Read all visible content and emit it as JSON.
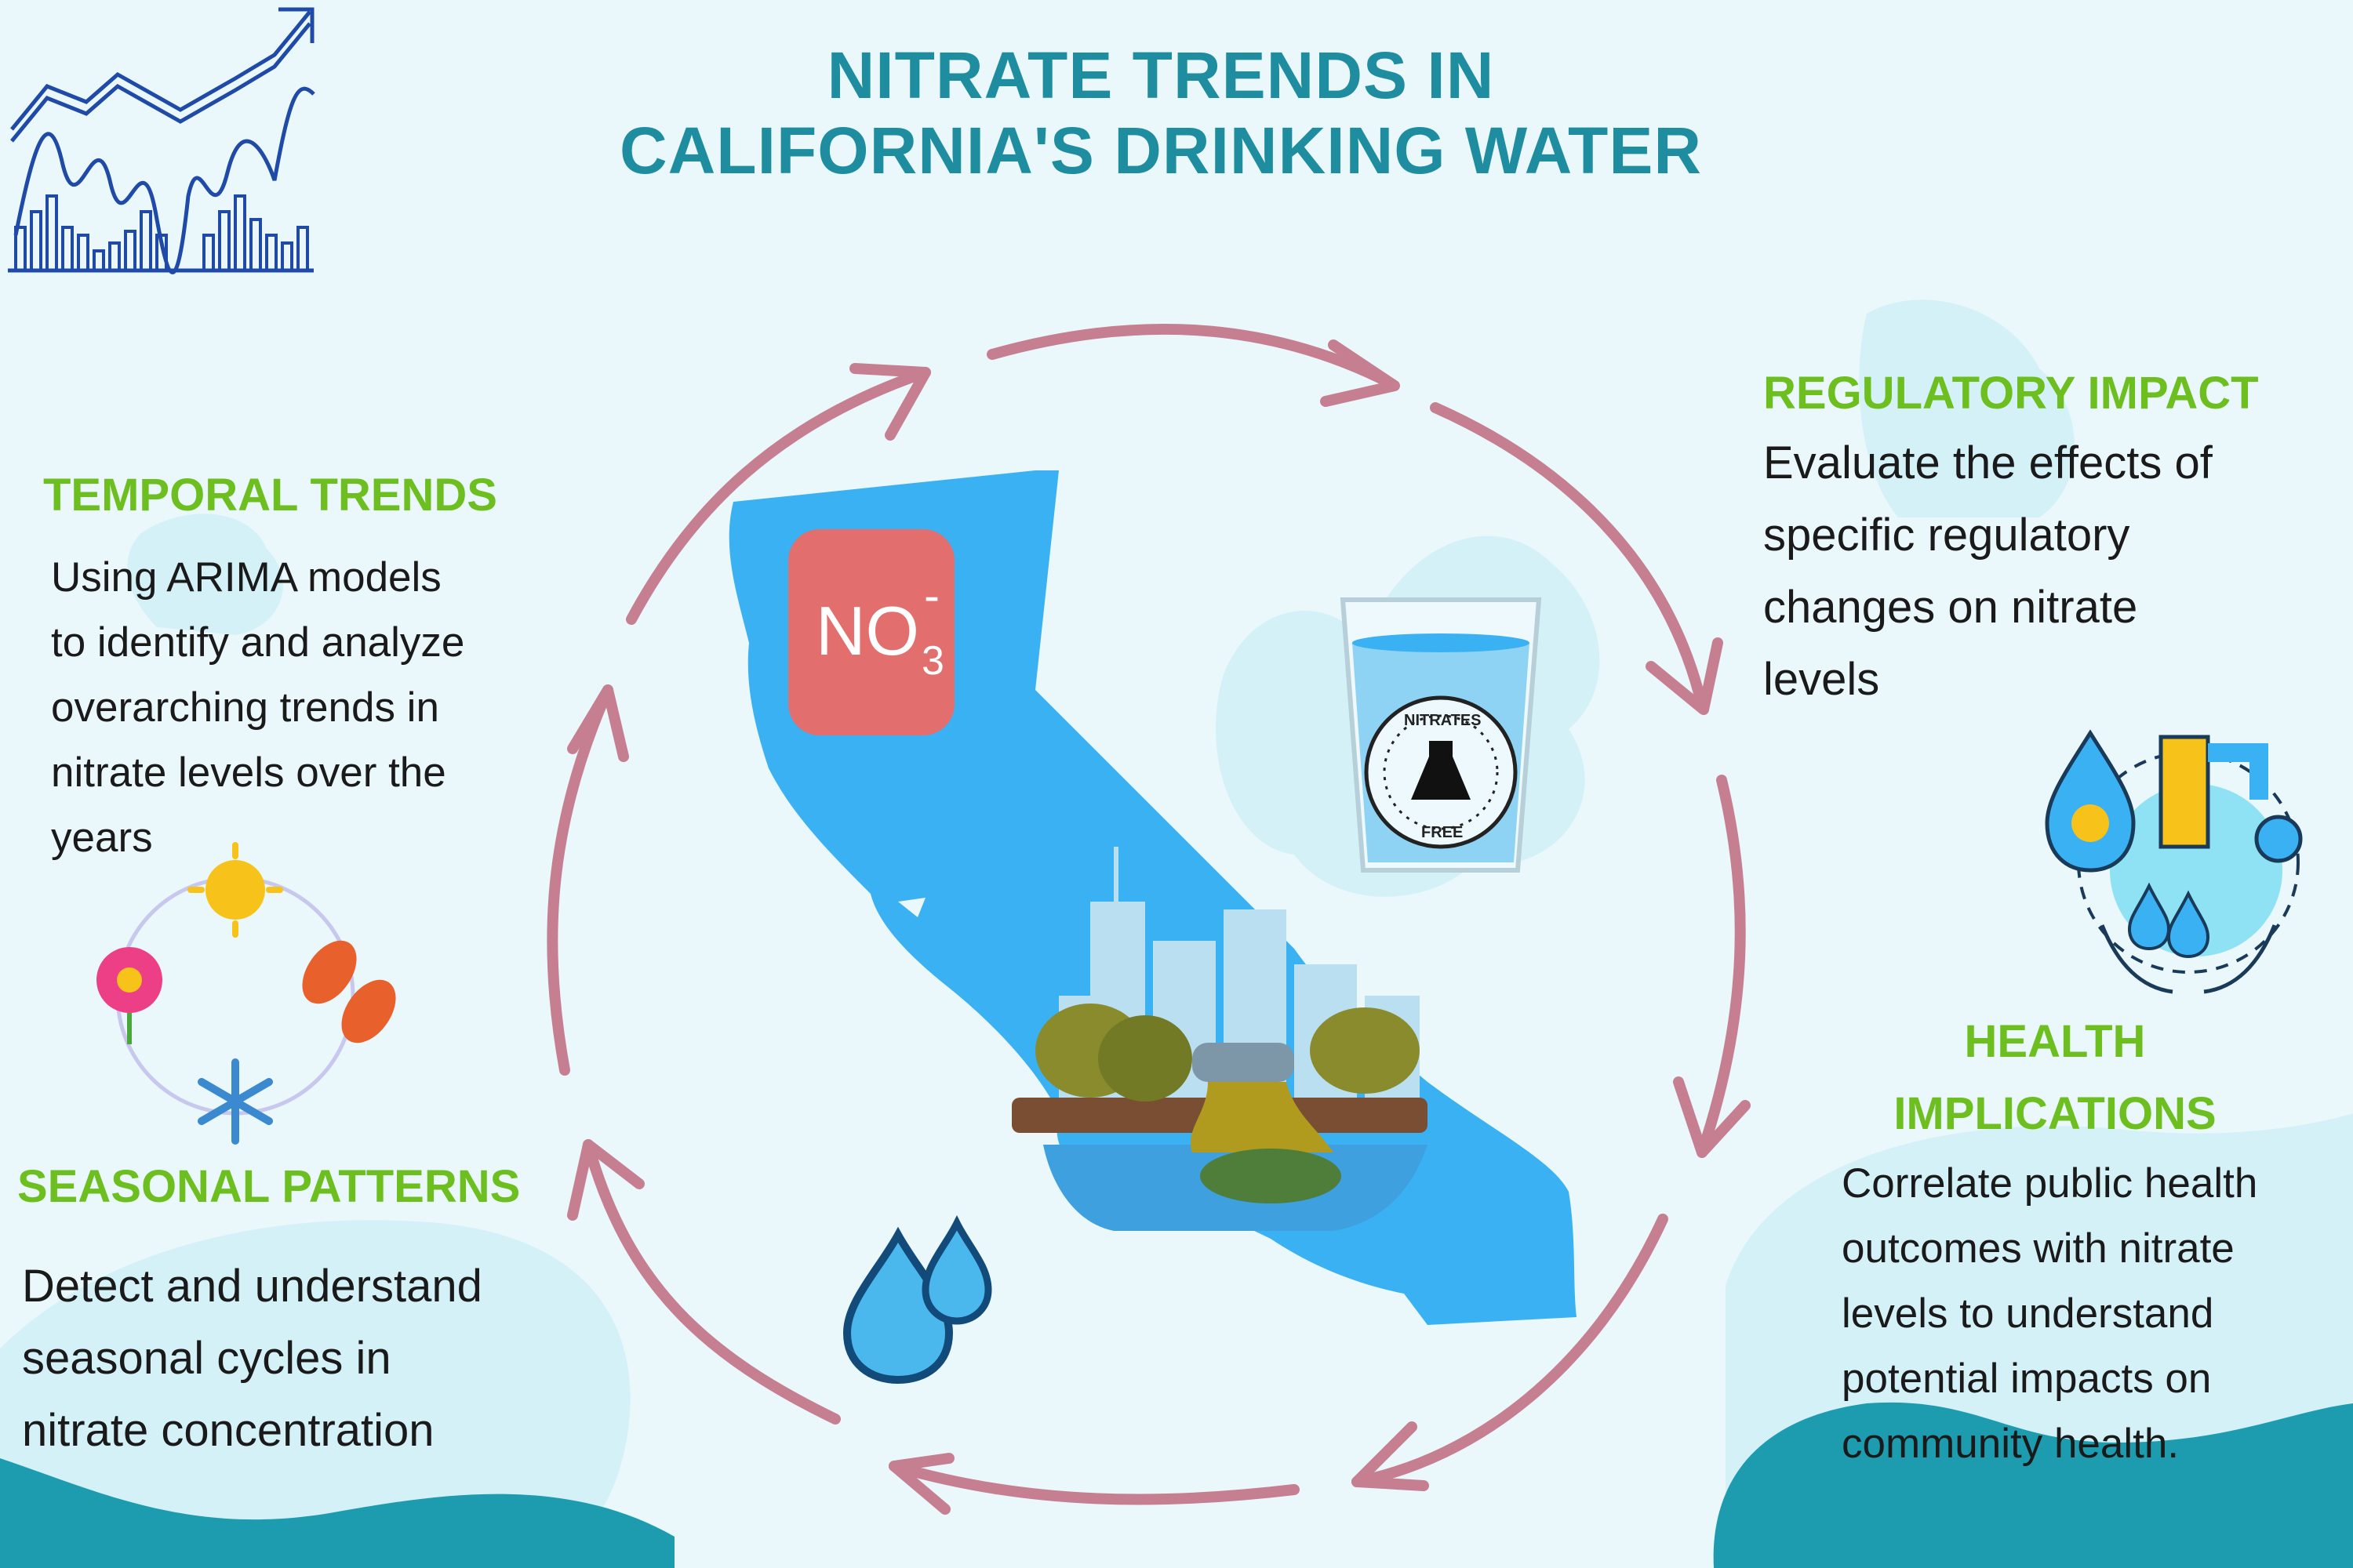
{
  "title": {
    "line1": "NITRATE TRENDS IN",
    "line2": "CALIFORNIA'S DRINKING WATER"
  },
  "sections": {
    "temporal": {
      "heading": "TEMPORAL TRENDS",
      "lines": [
        "Using ARIMA models",
        "to identify and analyze",
        "overarching trends in",
        "nitrate levels over the",
        "years"
      ]
    },
    "seasonal": {
      "heading": "SEASONAL PATTERNS",
      "lines": [
        "Detect and understand",
        "seasonal cycles in",
        "nitrate concentration"
      ]
    },
    "regulatory": {
      "heading": "REGULATORY IMPACT",
      "lines": [
        "Evaluate the effects of",
        "specific regulatory",
        "changes on nitrate",
        "levels"
      ]
    },
    "health": {
      "heading_line1": "HEALTH",
      "heading_line2": "IMPLICATIONS",
      "lines": [
        "Correlate public health",
        "outcomes with nitrate",
        "levels to understand",
        "potential impacts on",
        "community health."
      ]
    }
  },
  "formula": {
    "main": "NO",
    "sub": "3",
    "sup": "-"
  },
  "glass_badge": {
    "top": "NITRATES",
    "bottom": "FREE"
  },
  "colors": {
    "title": "#1f8da0",
    "heading": "#6cbf1f",
    "arrow": "#c57f90",
    "california": "#3ab1f2",
    "no3_box": "#e36e6e",
    "wave": "#1d9cb0",
    "blob": "#d4f1f8"
  },
  "icons": [
    "chart-icon",
    "california-map-icon",
    "no3-badge-icon",
    "water-glass-icon",
    "water-drops-icon",
    "seasons-cycle-icon",
    "water-management-icon",
    "city-skyline-icon",
    "polluted-river-icon"
  ]
}
